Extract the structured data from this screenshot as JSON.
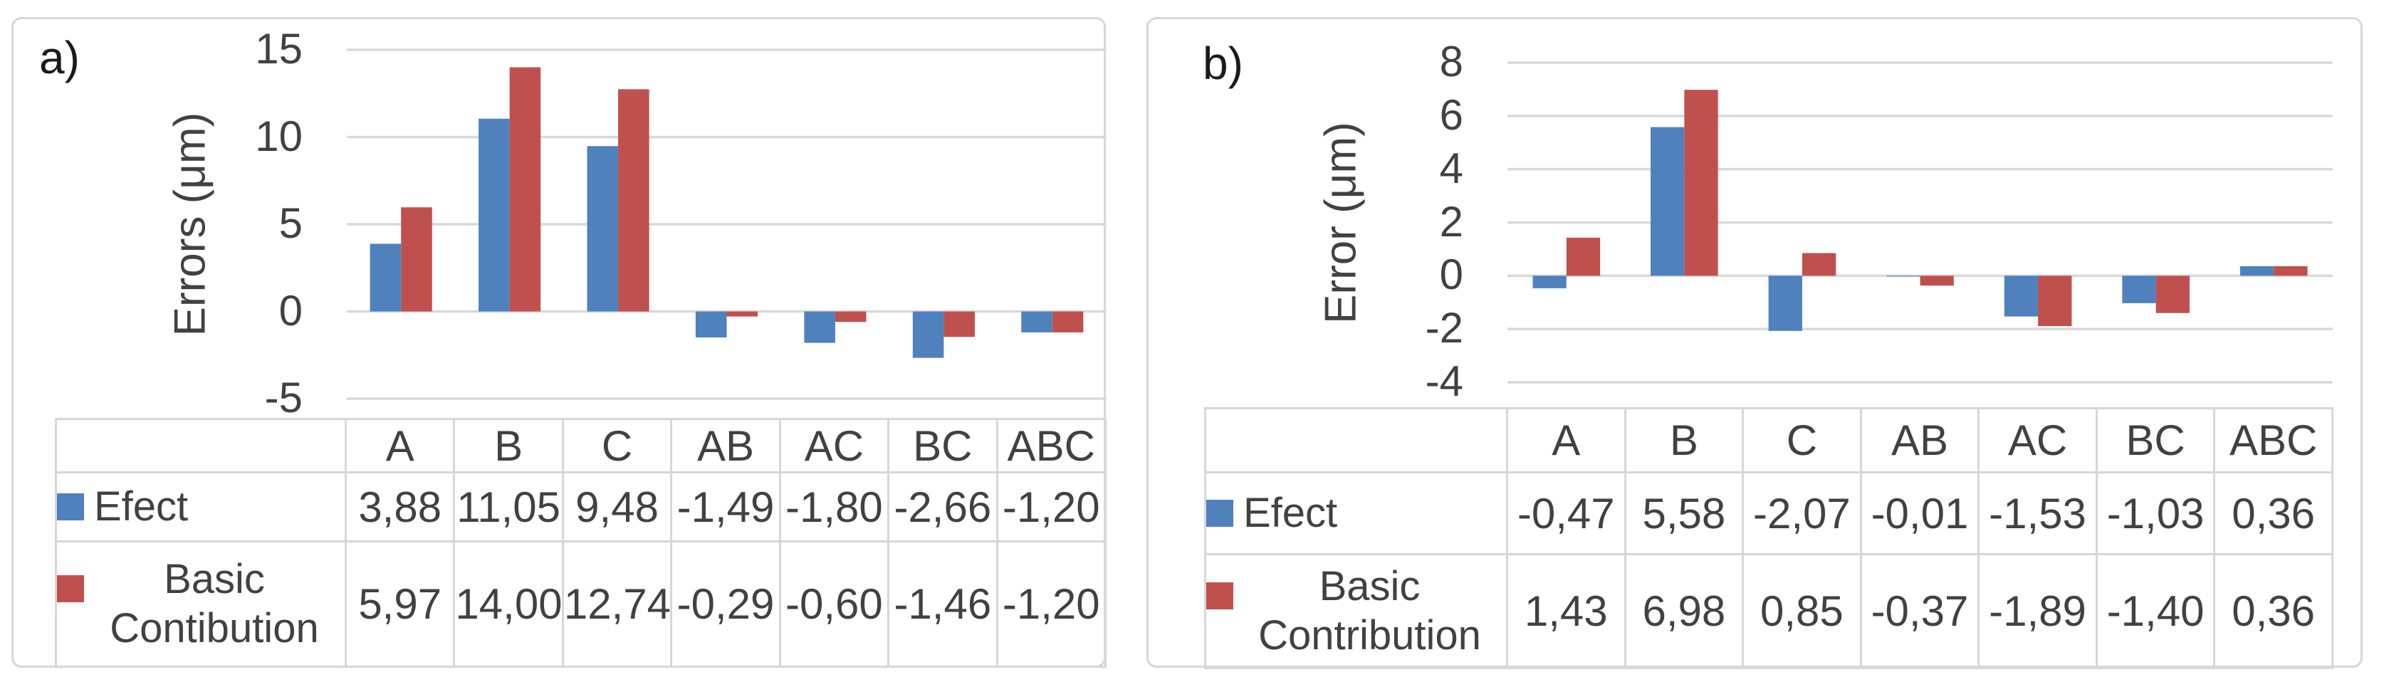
{
  "chart_data": [
    {
      "type": "bar",
      "panel_label": "a)",
      "title": "",
      "xlabel": "",
      "ylabel": "Errors (μm)",
      "ylim": [
        -5,
        15
      ],
      "y_ticks": [
        15,
        10,
        5,
        0,
        -5
      ],
      "grid": true,
      "legend_position": "table-left",
      "categories": [
        "A",
        "B",
        "C",
        "AB",
        "AC",
        "BC",
        "ABC"
      ],
      "series": [
        {
          "name": "Efect",
          "color": "#4F81BD",
          "values": [
            3.88,
            11.05,
            9.48,
            -1.49,
            -1.8,
            -2.66,
            -1.2
          ],
          "value_labels": [
            "3,88",
            "11,05",
            "9,48",
            "-1,49",
            "-1,80",
            "-2,66",
            "-1,20"
          ]
        },
        {
          "name": "Basic Contibution",
          "color": "#C0504D",
          "values": [
            5.97,
            14.0,
            12.74,
            -0.29,
            -0.6,
            -1.46,
            -1.2
          ],
          "value_labels": [
            "5,97",
            "14,00",
            "12,74",
            "-0,29",
            "-0,60",
            "-1,46",
            "-1,20"
          ]
        }
      ]
    },
    {
      "type": "bar",
      "panel_label": "b)",
      "title": "",
      "xlabel": "",
      "ylabel": "Error (μm)",
      "ylim": [
        -4,
        8
      ],
      "y_ticks": [
        8,
        6,
        4,
        2,
        0,
        -2,
        -4
      ],
      "grid": true,
      "legend_position": "table-left",
      "categories": [
        "A",
        "B",
        "C",
        "AB",
        "AC",
        "BC",
        "ABC"
      ],
      "series": [
        {
          "name": "Efect",
          "color": "#4F81BD",
          "values": [
            -0.47,
            5.58,
            -2.07,
            -0.01,
            -1.53,
            -1.03,
            0.36
          ],
          "value_labels": [
            "-0,47",
            "5,58",
            "-2,07",
            "-0,01",
            "-1,53",
            "-1,03",
            "0,36"
          ]
        },
        {
          "name": "Basic Contribution",
          "color": "#C0504D",
          "values": [
            1.43,
            6.98,
            0.85,
            -0.37,
            -1.89,
            -1.4,
            0.36
          ],
          "value_labels": [
            "1,43",
            "6,98",
            "0,85",
            "-0,37",
            "-1,89",
            "-1,40",
            "0,36"
          ]
        }
      ]
    }
  ],
  "colors": {
    "series_blue": "#4F81BD",
    "series_red": "#C0504D",
    "gridline": "#D9D9D9",
    "table_border": "#D7D7D7",
    "text": "#414141"
  }
}
